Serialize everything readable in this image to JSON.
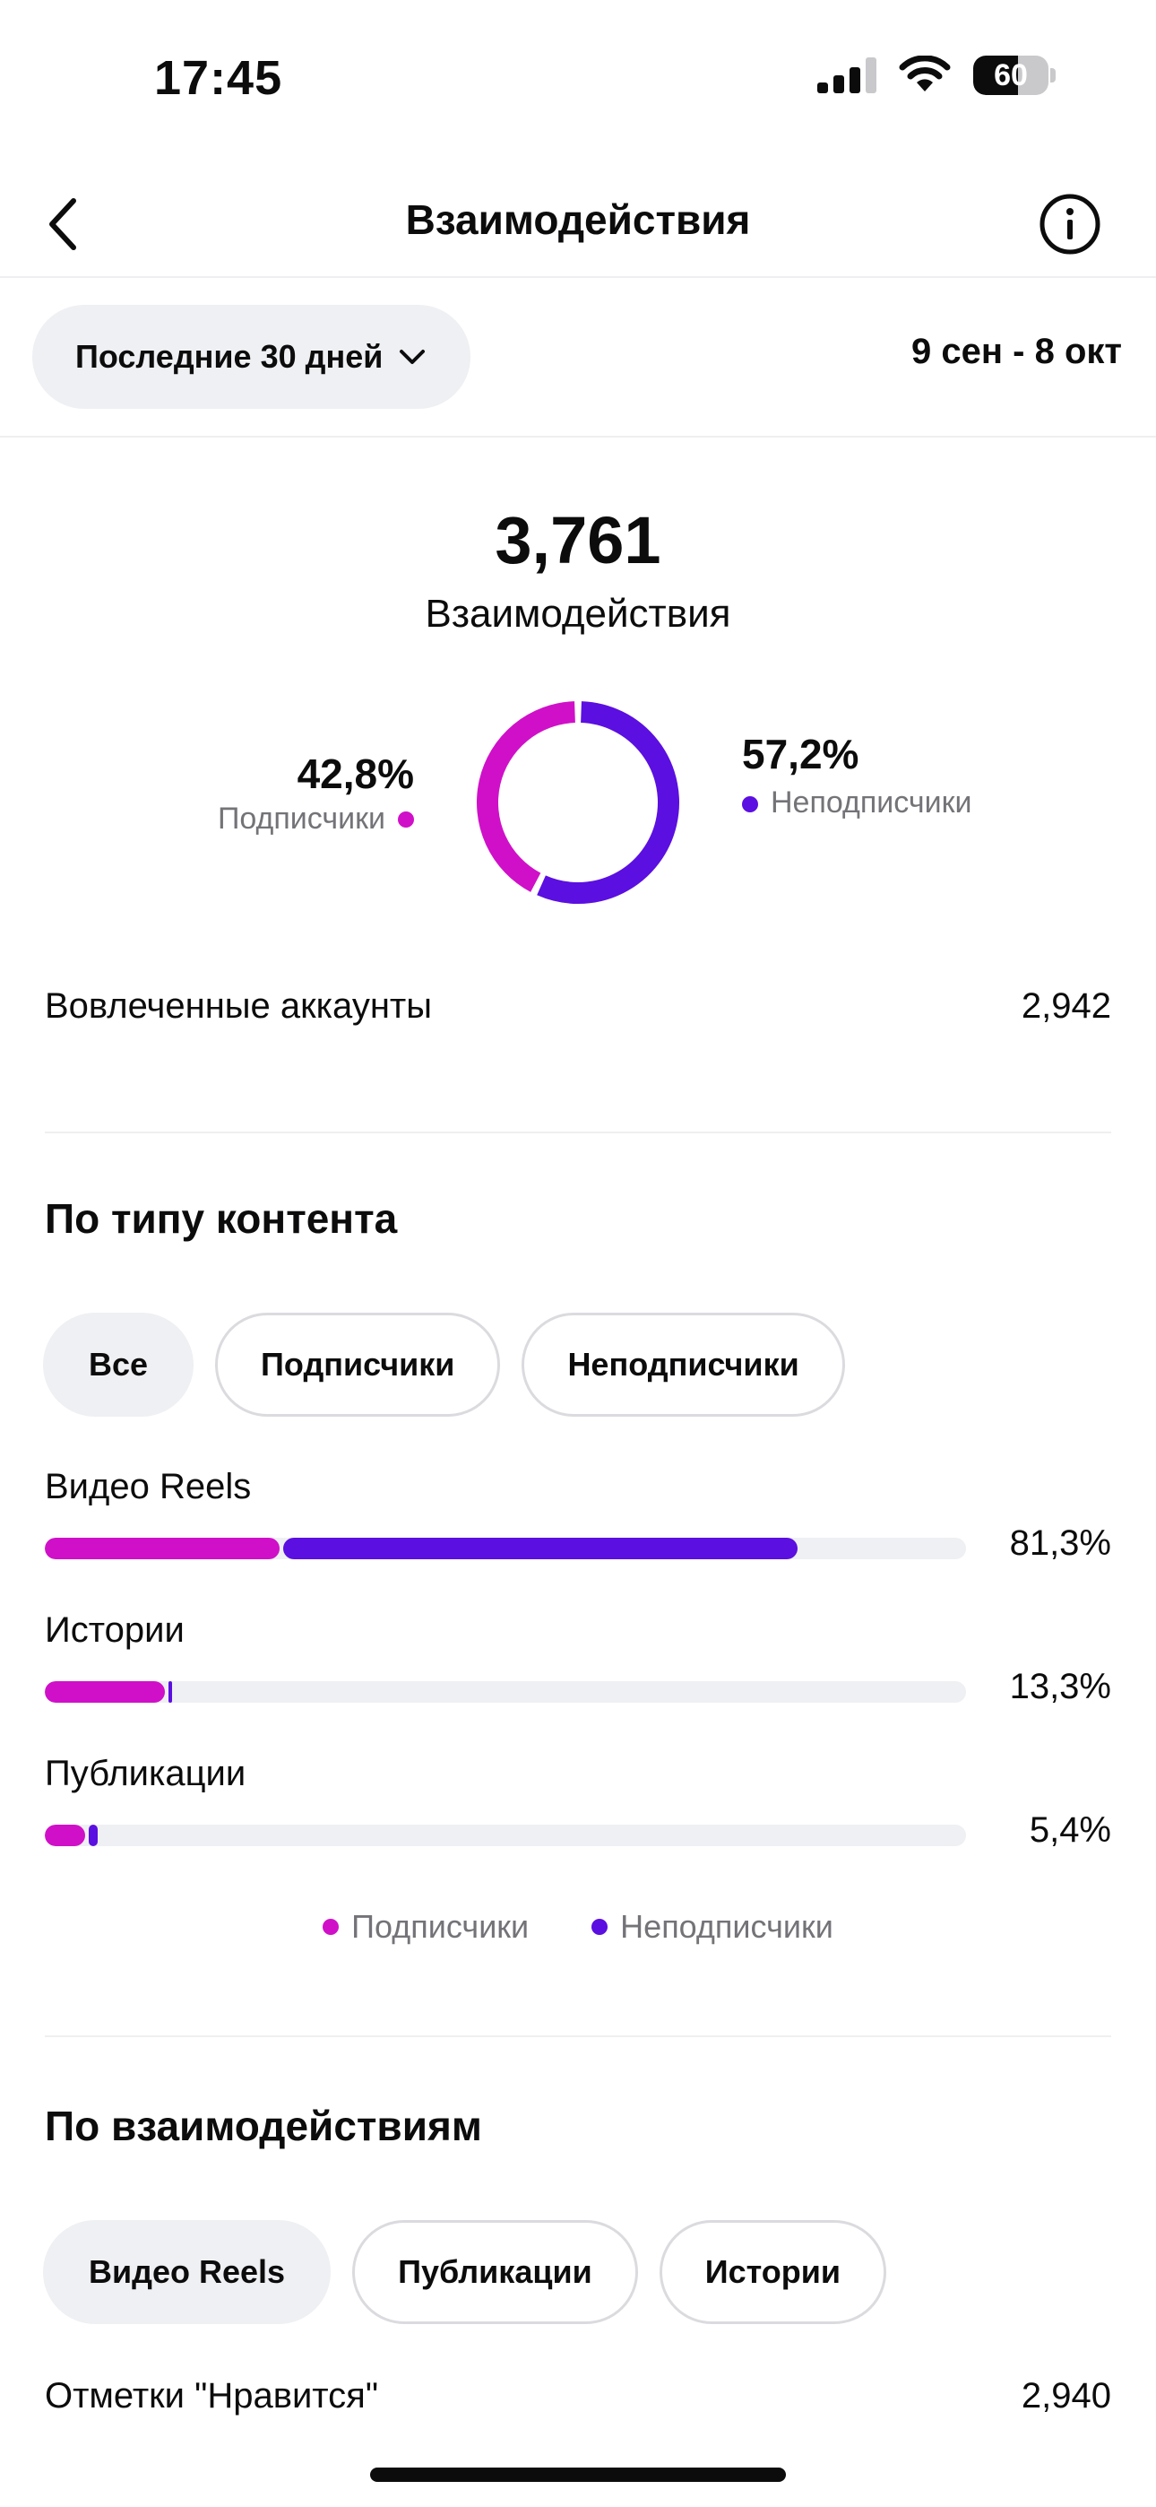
{
  "status_bar": {
    "time": "17:45",
    "battery": "60",
    "battery_level": 0.6
  },
  "header": {
    "title": "Взаимодействия"
  },
  "filter": {
    "period": "Последние 30 дней",
    "date_range": "9 сен - 8 окт"
  },
  "summary": {
    "total": "3,761",
    "label": "Взаимодействия",
    "followers": {
      "pct": "42,8%",
      "label": "Подписчики",
      "fraction": 0.428
    },
    "non_followers": {
      "pct": "57,2%",
      "label": "Неподписчики",
      "fraction": 0.572
    },
    "accounts_label": "Вовлеченные аккаунты",
    "accounts_value": "2,942"
  },
  "colors": {
    "followers": "#d010c8",
    "non_followers": "#5b0fe0",
    "track": "#eff0f3"
  },
  "content_type": {
    "title": "По типу контента",
    "chips": [
      {
        "label": "Все",
        "active": true
      },
      {
        "label": "Подписчики",
        "active": false
      },
      {
        "label": "Неподписчики",
        "active": false
      }
    ],
    "bars": [
      {
        "label": "Видео Reels",
        "pct": "81,3%",
        "followers": 0.255,
        "non_followers": 0.558
      },
      {
        "label": "Истории",
        "pct": "13,3%",
        "followers": 0.13,
        "non_followers": 0.004
      },
      {
        "label": "Публикации",
        "pct": "5,4%",
        "followers": 0.044,
        "non_followers": 0.01
      }
    ],
    "legend": [
      "Подписчики",
      "Неподписчики"
    ]
  },
  "interactions": {
    "title": "По взаимодействиям",
    "chips": [
      {
        "label": "Видео Reels",
        "active": true
      },
      {
        "label": "Публикации",
        "active": false
      },
      {
        "label": "Истории",
        "active": false
      }
    ],
    "likes_label": "Отметки \"Нравится\"",
    "likes_value": "2,940"
  }
}
